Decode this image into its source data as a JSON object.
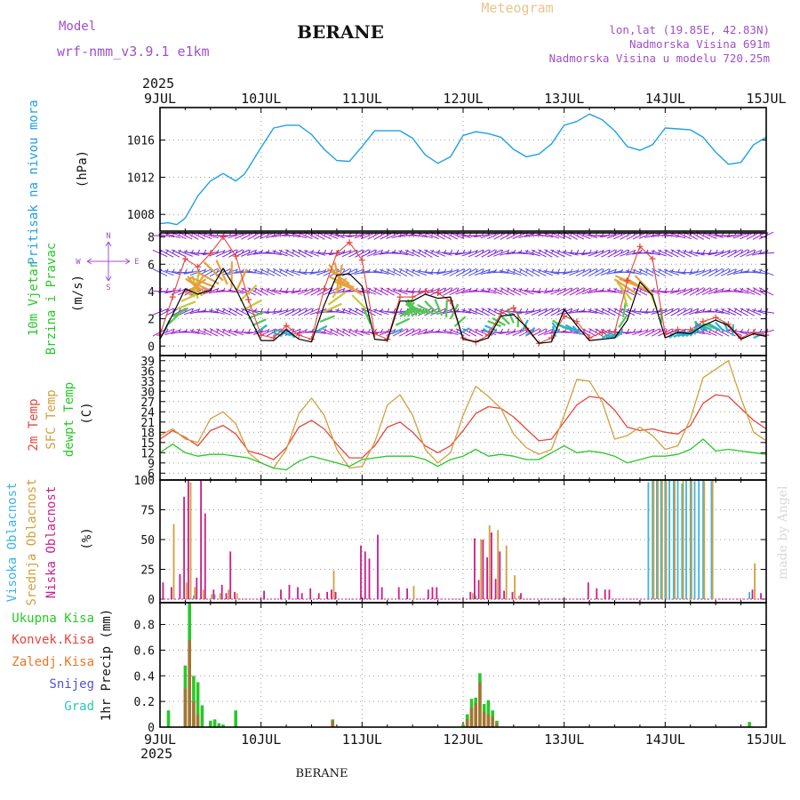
{
  "header": {
    "model_label": "Model",
    "model_name": "wrf-nmm_v3.9.1 e1km",
    "station": "BERANE",
    "product": "Meteogram",
    "lonlat": "lon,lat (19.85E, 42.83N)",
    "elevation": "Nadmorska Visina 691m",
    "model_elevation": "Nadmorska Visina u modelu 720.25m",
    "year_top": "2025",
    "year_bottom": "2025",
    "footer_station": "BERANE",
    "watermark": "made by Angel"
  },
  "colors": {
    "pressure": "#1ea0e6",
    "temp2m": "#e6463c",
    "sfc_temp": "#d2a03c",
    "dewpoint": "#28c828",
    "wind_speed": "#000000",
    "gust": "#e6463c",
    "cloud_high": "#3cb4e6",
    "cloud_mid": "#d2a03c",
    "cloud_low": "#c81e8c",
    "precip_total": "#28c828",
    "precip_conv": "#e6463c",
    "precip_grid": "#e67828",
    "snow": "#5050e6",
    "graupel": "#28c8b4",
    "purple_text": "#a050c8"
  },
  "chart_data": [
    {
      "type": "line",
      "panel": "pressure",
      "ylabel": [
        "Pritisak na nivou mora",
        "(hPa)"
      ],
      "yticks": [
        1008,
        1012,
        1016
      ],
      "ylim": [
        1006.2,
        1019.5
      ],
      "x_unit": "hours since 2025-07-09 00:00",
      "x_tick_labels": [
        "9JUL",
        "10JUL",
        "11JUL",
        "12JUL",
        "13JUL",
        "14JUL",
        "15JUL"
      ],
      "grid": true,
      "series": [
        {
          "name": "Pritisak na nivou mora",
          "x": [
            0,
            2,
            4,
            6,
            9,
            12,
            15,
            18,
            20,
            21,
            24,
            27,
            30,
            33,
            36,
            39,
            42,
            45,
            48,
            51,
            54,
            57,
            60,
            63,
            66,
            69,
            72,
            75,
            78,
            81,
            84,
            87,
            90,
            93,
            96,
            99,
            102,
            105,
            108,
            111,
            114,
            117,
            120,
            123,
            126,
            129,
            132,
            135,
            138,
            141,
            144
          ],
          "y": [
            1007.0,
            1007.1,
            1006.9,
            1007.6,
            1010.0,
            1011.6,
            1012.4,
            1011.6,
            1012.3,
            1013.0,
            1015.2,
            1017.3,
            1017.6,
            1017.6,
            1016.6,
            1015.0,
            1013.8,
            1013.7,
            1015.3,
            1017.0,
            1017.0,
            1017.0,
            1016.2,
            1014.4,
            1013.5,
            1014.2,
            1016.5,
            1016.9,
            1016.7,
            1016.3,
            1015.0,
            1014.2,
            1014.5,
            1015.6,
            1017.6,
            1018.0,
            1018.8,
            1018.2,
            1017.0,
            1015.3,
            1014.9,
            1015.5,
            1017.3,
            1017.2,
            1017.1,
            1016.3,
            1014.7,
            1013.4,
            1013.6,
            1015.5,
            1016.3
          ]
        }
      ]
    },
    {
      "type": "line",
      "panel": "wind",
      "ylabel": [
        "10m Vjetar",
        "Brzina i Pravac",
        "(m/s)"
      ],
      "compass_labels": [
        "N",
        "S",
        "W",
        "E"
      ],
      "yticks": [
        0,
        2,
        4,
        6,
        8
      ],
      "ylim": [
        -0.7,
        8.3
      ],
      "x_unit": "hours since 2025-07-09 00:00",
      "grid": true,
      "series": [
        {
          "name": "wind speed",
          "x": [
            0,
            3,
            6,
            9,
            12,
            15,
            18,
            21,
            24,
            27,
            30,
            33,
            36,
            39,
            42,
            45,
            48,
            51,
            54,
            57,
            60,
            63,
            66,
            69,
            72,
            75,
            78,
            81,
            84,
            87,
            90,
            93,
            96,
            99,
            102,
            105,
            108,
            111,
            114,
            117,
            120,
            123,
            126,
            129,
            132,
            135,
            138,
            141,
            144
          ],
          "y": [
            0.5,
            2.3,
            4.2,
            3.8,
            4.1,
            5.7,
            4.2,
            2.3,
            0.4,
            0.4,
            1.2,
            0.5,
            0.3,
            3.0,
            5.2,
            5.3,
            4.4,
            0.5,
            0.4,
            3.3,
            3.3,
            3.8,
            3.5,
            3.6,
            0.5,
            0.3,
            0.6,
            2.2,
            2.3,
            1.4,
            0.2,
            0.3,
            2.7,
            1.5,
            0.4,
            0.5,
            0.6,
            1.9,
            4.7,
            3.7,
            0.6,
            1.0,
            0.9,
            1.5,
            1.9,
            1.5,
            0.5,
            0.9,
            0.7
          ]
        },
        {
          "name": "gust",
          "x": [
            0,
            3,
            6,
            9,
            12,
            15,
            18,
            21,
            24,
            27,
            30,
            33,
            36,
            39,
            42,
            45,
            48,
            51,
            54,
            57,
            60,
            63,
            66,
            69,
            72,
            75,
            78,
            81,
            84,
            87,
            90,
            93,
            96,
            99,
            102,
            105,
            108,
            111,
            114,
            117,
            120,
            123,
            126,
            129,
            132,
            135,
            138,
            141,
            144
          ],
          "y": [
            0.8,
            3.6,
            6.4,
            5.8,
            6.8,
            8.0,
            6.6,
            3.4,
            0.8,
            0.6,
            1.5,
            0.8,
            0.5,
            4.2,
            6.8,
            7.6,
            6.3,
            0.9,
            0.5,
            3.6,
            3.6,
            4.0,
            3.9,
            3.3,
            0.6,
            0.3,
            0.8,
            2.4,
            2.8,
            1.3,
            0.2,
            0.6,
            2.2,
            1.8,
            0.6,
            1.0,
            1.0,
            4.8,
            7.3,
            6.4,
            0.9,
            1.2,
            1.2,
            1.8,
            2.1,
            1.6,
            0.6,
            1.0,
            0.8
          ]
        }
      ]
    },
    {
      "type": "line",
      "panel": "temperature",
      "ylabel": [
        "2m Temp",
        "SFC Temp",
        "dewpt Temp",
        "(C)"
      ],
      "yticks": [
        6,
        9,
        12,
        15,
        18,
        21,
        24,
        27,
        30,
        33,
        36,
        39
      ],
      "ylim": [
        4,
        40.5
      ],
      "x_unit": "hours since 2025-07-09 00:00",
      "grid": true,
      "series": [
        {
          "name": "2m Temp",
          "x": [
            0,
            3,
            6,
            9,
            12,
            15,
            18,
            21,
            24,
            27,
            30,
            33,
            36,
            39,
            42,
            45,
            48,
            51,
            54,
            57,
            60,
            63,
            66,
            69,
            72,
            75,
            78,
            81,
            84,
            87,
            90,
            93,
            96,
            99,
            102,
            105,
            108,
            111,
            114,
            117,
            120,
            123,
            126,
            129,
            132,
            135,
            138,
            141,
            144
          ],
          "y": [
            16.0,
            18.5,
            16.5,
            14.0,
            18.5,
            20.0,
            17.5,
            12.5,
            11.5,
            10.0,
            13.5,
            19.5,
            21.5,
            19.0,
            14.5,
            10.5,
            10.5,
            14.0,
            19.5,
            21.0,
            18.0,
            14.0,
            12.0,
            14.0,
            18.5,
            23.5,
            25.5,
            25.0,
            22.5,
            19.0,
            15.5,
            16.0,
            21.0,
            26.0,
            28.5,
            28.0,
            24.5,
            19.5,
            18.5,
            19.0,
            18.0,
            17.5,
            20.0,
            26.5,
            29.0,
            28.5,
            25.0,
            21.5,
            19.0
          ]
        },
        {
          "name": "SFC Temp",
          "x": [
            0,
            3,
            6,
            9,
            12,
            15,
            18,
            21,
            24,
            27,
            30,
            33,
            36,
            39,
            42,
            45,
            48,
            51,
            54,
            57,
            60,
            63,
            66,
            69,
            72,
            75,
            78,
            81,
            84,
            87,
            90,
            93,
            96,
            99,
            102,
            105,
            108,
            111,
            114,
            117,
            120,
            123,
            126,
            129,
            132,
            135,
            138,
            141,
            144
          ],
          "y": [
            17.0,
            19.0,
            16.0,
            15.0,
            22.0,
            24.0,
            20.5,
            12.0,
            9.0,
            7.5,
            13.0,
            23.5,
            28.0,
            23.0,
            13.0,
            7.5,
            8.0,
            15.0,
            26.0,
            29.0,
            23.0,
            13.0,
            9.0,
            12.0,
            23.0,
            31.5,
            28.5,
            25.0,
            17.5,
            13.5,
            11.5,
            13.0,
            23.0,
            33.5,
            33.0,
            27.0,
            16.0,
            17.0,
            19.5,
            17.0,
            13.0,
            14.0,
            22.0,
            34.0,
            36.5,
            39.0,
            28.0,
            18.0,
            15.5
          ]
        },
        {
          "name": "dewpt Temp",
          "x": [
            0,
            3,
            6,
            9,
            12,
            15,
            18,
            21,
            24,
            27,
            30,
            33,
            36,
            39,
            42,
            45,
            48,
            51,
            54,
            57,
            60,
            63,
            66,
            69,
            72,
            75,
            78,
            81,
            84,
            87,
            90,
            93,
            96,
            99,
            102,
            105,
            108,
            111,
            114,
            117,
            120,
            123,
            126,
            129,
            132,
            135,
            138,
            141,
            144
          ],
          "y": [
            12.0,
            14.5,
            12.0,
            11.0,
            11.5,
            11.5,
            11.0,
            10.5,
            9.0,
            7.5,
            7.0,
            9.5,
            11.0,
            10.0,
            9.0,
            8.0,
            10.0,
            10.5,
            11.0,
            11.0,
            11.0,
            10.0,
            8.0,
            10.0,
            11.0,
            13.0,
            11.0,
            11.5,
            11.0,
            10.0,
            10.0,
            12.0,
            14.0,
            12.0,
            12.5,
            12.0,
            11.0,
            9.0,
            10.0,
            11.0,
            11.0,
            11.5,
            13.0,
            16.0,
            12.5,
            13.0,
            12.5,
            12.0,
            11.5
          ]
        }
      ]
    },
    {
      "type": "bar",
      "panel": "cloud",
      "ylabel": [
        "Visoka Oblacnost",
        "Srednja Oblacnost",
        "Niska Oblacnost",
        "(%)"
      ],
      "yticks": [
        0,
        25,
        50,
        75,
        100
      ],
      "ylim": [
        -3,
        100
      ],
      "x_unit": "hours since 2025-07-09 00:00",
      "grid": true,
      "series": [
        {
          "name": "Visoka Oblacnost",
          "x": [
            8,
            13,
            75,
            116,
            117,
            118,
            119,
            120,
            121,
            122,
            123,
            124,
            125,
            126,
            127,
            128,
            129,
            131,
            140
          ],
          "y": [
            3,
            4,
            3,
            98,
            100,
            100,
            100,
            99,
            100,
            100,
            100,
            97,
            100,
            99,
            99,
            100,
            100,
            99,
            6
          ]
        },
        {
          "name": "Srednja Oblacnost",
          "x": [
            3,
            6,
            7,
            8,
            10,
            12,
            14,
            16,
            18,
            41,
            60,
            74,
            76,
            78,
            80,
            82,
            84,
            85,
            117,
            118,
            119,
            120,
            122,
            124,
            126,
            129,
            131,
            141
          ],
          "y": [
            63,
            14,
            98,
            10,
            8,
            4,
            5,
            8,
            5,
            24,
            11,
            5,
            50,
            62,
            58,
            45,
            20,
            3,
            100,
            100,
            100,
            99,
            100,
            100,
            100,
            99,
            100,
            30
          ]
        },
        {
          "name": "Niska Oblacnost",
          "x": [
            1,
            3,
            5,
            6,
            7,
            9,
            10,
            11,
            13,
            15,
            16,
            17,
            18,
            25,
            29,
            31,
            33,
            34,
            36,
            38,
            40,
            41,
            42,
            48,
            49,
            50,
            52,
            53,
            57,
            59,
            64,
            65,
            66,
            74,
            75,
            76,
            77,
            78,
            79,
            80,
            81,
            82,
            84,
            86,
            102,
            104,
            106,
            107,
            141,
            143
          ],
          "y": [
            14,
            10,
            21,
            86,
            100,
            18,
            100,
            72,
            8,
            12,
            5,
            40,
            6,
            7,
            8,
            12,
            10,
            5,
            9,
            5,
            6,
            8,
            6,
            45,
            40,
            34,
            54,
            10,
            10,
            9,
            8,
            10,
            10,
            6,
            51,
            16,
            50,
            35,
            56,
            17,
            40,
            7,
            6,
            5,
            14,
            9,
            8,
            8,
            8,
            5
          ]
        }
      ]
    },
    {
      "type": "bar",
      "panel": "precip",
      "ylabel": [
        "1hr Precip (mm)"
      ],
      "legend": [
        "Ukupna Kisa",
        "Konvek.Kisa",
        "Zaledj.Kisa",
        "Snijeg",
        "Grad"
      ],
      "yticks": [
        0,
        0.2,
        0.4,
        0.6,
        0.8
      ],
      "ylim": [
        0,
        0.97
      ],
      "x_unit": "hours since 2025-07-09 00:00",
      "x_tick_labels": [
        "9JUL",
        "10JUL",
        "11JUL",
        "12JUL",
        "13JUL",
        "14JUL",
        "15JUL"
      ],
      "grid": true,
      "series": [
        {
          "name": "Ukupna Kisa",
          "x": [
            2,
            6,
            7,
            8,
            9,
            10,
            12,
            13,
            14,
            15,
            18,
            41,
            72,
            73,
            74,
            75,
            76,
            77,
            78,
            79,
            80,
            140
          ],
          "y": [
            0.13,
            0.48,
            0.97,
            0.4,
            0.35,
            0.17,
            0.05,
            0.06,
            0.03,
            0.02,
            0.13,
            0.06,
            0.02,
            0.1,
            0.22,
            0.23,
            0.42,
            0.18,
            0.21,
            0.13,
            0.05,
            0.04
          ]
        },
        {
          "name": "Konvek.Kisa",
          "x": [
            6,
            7,
            8,
            9,
            41,
            73,
            74,
            75,
            76,
            77,
            78,
            79,
            80
          ],
          "y": [
            0.3,
            0.68,
            0.2,
            0.1,
            0.05,
            0.06,
            0.15,
            0.19,
            0.35,
            0.12,
            0.1,
            0.08,
            0.03
          ]
        },
        {
          "name": "Zaledj.Kisa",
          "x": [],
          "y": []
        },
        {
          "name": "Snijeg",
          "x": [],
          "y": []
        },
        {
          "name": "Grad",
          "x": [],
          "y": []
        }
      ]
    }
  ]
}
